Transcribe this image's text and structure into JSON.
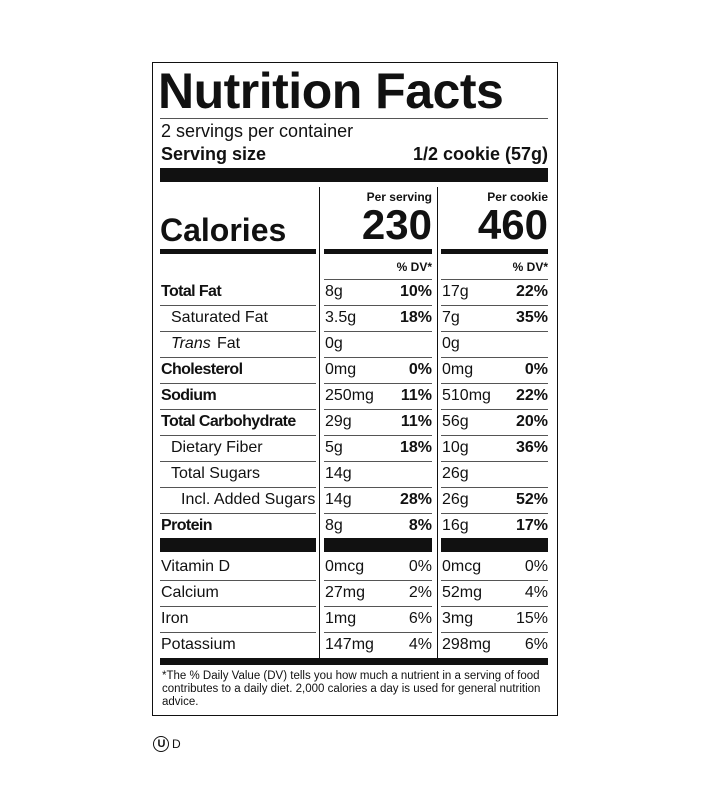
{
  "header": {
    "title": "Nutrition Facts",
    "servings": "2 servings per container",
    "serving_size_label": "Serving size",
    "serving_size": "1/2 cookie (57g)"
  },
  "calories": {
    "label": "Calories",
    "columns": [
      {
        "heading": "Per serving",
        "value": "230"
      },
      {
        "heading": "Per cookie",
        "value": "460"
      }
    ],
    "dv_heading": "% DV*"
  },
  "nutrients": [
    {
      "name": "Total Fat",
      "bold": true,
      "level": 0,
      "cells": [
        [
          "8g",
          "10%"
        ],
        [
          "17g",
          "22%"
        ]
      ]
    },
    {
      "name": "Saturated Fat",
      "bold": false,
      "level": 1,
      "cells": [
        [
          "3.5g",
          "18%"
        ],
        [
          "7g",
          "35%"
        ]
      ]
    },
    {
      "name_italic": "Trans",
      "name": "Fat",
      "bold": false,
      "level": 1,
      "cells": [
        [
          "0g"
        ],
        [
          "0g"
        ]
      ]
    },
    {
      "name": "Cholesterol",
      "bold": true,
      "level": 0,
      "cells": [
        [
          "0mg",
          "0%"
        ],
        [
          "0mg",
          "0%"
        ]
      ]
    },
    {
      "name": "Sodium",
      "bold": true,
      "level": 0,
      "cells": [
        [
          "250mg",
          "11%"
        ],
        [
          "510mg",
          "22%"
        ]
      ]
    },
    {
      "name": "Total Carbohydrate",
      "bold": true,
      "level": 0,
      "cells": [
        [
          "29g",
          "11%"
        ],
        [
          "56g",
          "20%"
        ]
      ]
    },
    {
      "name": "Dietary Fiber",
      "bold": false,
      "level": 1,
      "cells": [
        [
          "5g",
          "18%"
        ],
        [
          "10g",
          "36%"
        ]
      ]
    },
    {
      "name": "Total Sugars",
      "bold": false,
      "level": 1,
      "cells": [
        [
          "14g"
        ],
        [
          "26g"
        ]
      ]
    },
    {
      "name": "Incl. Added Sugars",
      "bold": false,
      "level": 2,
      "cells": [
        [
          "14g",
          "28%"
        ],
        [
          "26g",
          "52%"
        ]
      ]
    },
    {
      "name": "Protein",
      "bold": true,
      "level": 0,
      "cells": [
        [
          "8g",
          "8%"
        ],
        [
          "16g",
          "17%"
        ]
      ]
    }
  ],
  "vitamins": [
    {
      "name": "Vitamin D",
      "cells": [
        [
          "0mcg",
          "0%"
        ],
        [
          "0mcg",
          "0%"
        ]
      ]
    },
    {
      "name": "Calcium",
      "cells": [
        [
          "27mg",
          "2%"
        ],
        [
          "52mg",
          "4%"
        ]
      ]
    },
    {
      "name": "Iron",
      "cells": [
        [
          "1mg",
          "6%"
        ],
        [
          "3mg",
          "15%"
        ]
      ]
    },
    {
      "name": "Potassium",
      "cells": [
        [
          "147mg",
          "4%"
        ],
        [
          "298mg",
          "6%"
        ]
      ]
    }
  ],
  "footnote": "*The % Daily Value (DV) tells you how much a nutrient in a serving of food contributes to a daily diet. 2,000 calories a day is used for general nutrition advice.",
  "certification": {
    "symbol": "U",
    "suffix": "D"
  }
}
